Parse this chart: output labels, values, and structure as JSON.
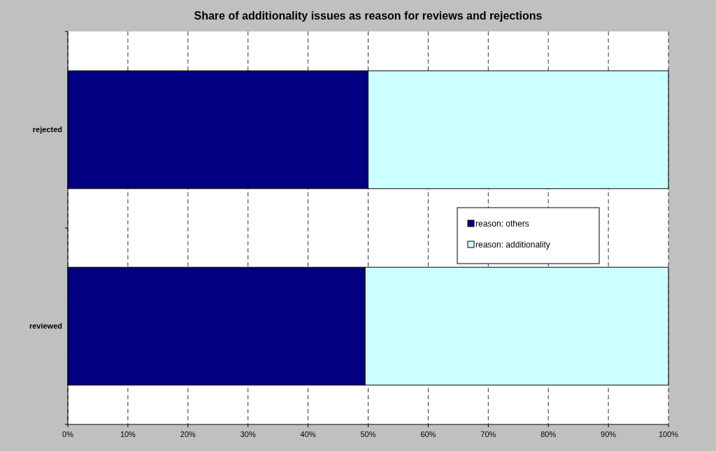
{
  "chart_data": {
    "type": "bar",
    "title": "Share of additionality issues as reason for reviews and rejections",
    "orientation": "horizontal",
    "stacked": true,
    "categories": [
      "rejected",
      "reviewed"
    ],
    "series": [
      {
        "name": "reason: others",
        "color": "#000080",
        "values": [
          50,
          49.5
        ]
      },
      {
        "name": "reason: additionality",
        "color": "#ccffff",
        "values": [
          50,
          50.5
        ]
      }
    ],
    "xlim": [
      0,
      100
    ],
    "xticks": [
      {
        "value": 0,
        "label": "0%"
      },
      {
        "value": 10,
        "label": "10%"
      },
      {
        "value": 20,
        "label": "20%"
      },
      {
        "value": 30,
        "label": "30%"
      },
      {
        "value": 40,
        "label": "40%"
      },
      {
        "value": 50,
        "label": "50%"
      },
      {
        "value": 60,
        "label": "60%"
      },
      {
        "value": 70,
        "label": "70%"
      },
      {
        "value": 80,
        "label": "80%"
      },
      {
        "value": 90,
        "label": "90%"
      },
      {
        "value": 100,
        "label": "100%"
      }
    ],
    "grid": "x",
    "legend": "right"
  }
}
